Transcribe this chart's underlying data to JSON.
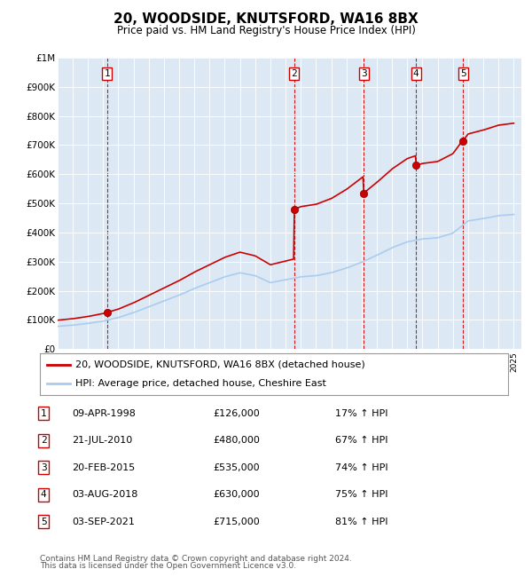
{
  "title": "20, WOODSIDE, KNUTSFORD, WA16 8BX",
  "subtitle": "Price paid vs. HM Land Registry's House Price Index (HPI)",
  "x_start_year": 1995,
  "x_end_year": 2025,
  "y_max": 1000000,
  "y_ticks": [
    0,
    100000,
    200000,
    300000,
    400000,
    500000,
    600000,
    700000,
    800000,
    900000,
    1000000
  ],
  "y_tick_labels": [
    "£0",
    "£100K",
    "£200K",
    "£300K",
    "£400K",
    "£500K",
    "£600K",
    "£700K",
    "£800K",
    "£900K",
    "£1M"
  ],
  "purchases": [
    {
      "date_year": 1998.27,
      "price": 126000,
      "label": "1",
      "date_str": "09-APR-1998",
      "hpi_pct": "17%"
    },
    {
      "date_year": 2010.55,
      "price": 480000,
      "label": "2",
      "date_str": "21-JUL-2010",
      "hpi_pct": "67%"
    },
    {
      "date_year": 2015.13,
      "price": 535000,
      "label": "3",
      "date_str": "20-FEB-2015",
      "hpi_pct": "74%"
    },
    {
      "date_year": 2018.58,
      "price": 630000,
      "label": "4",
      "date_str": "03-AUG-2018",
      "hpi_pct": "75%"
    },
    {
      "date_year": 2021.67,
      "price": 715000,
      "label": "5",
      "date_str": "03-SEP-2021",
      "hpi_pct": "81%"
    }
  ],
  "hpi_line_color": "#aaccee",
  "price_line_color": "#CC0000",
  "purchase_marker_color": "#CC0000",
  "purchase_vline_color": "#CC0000",
  "legend_red_label": "20, WOODSIDE, KNUTSFORD, WA16 8BX (detached house)",
  "legend_blue_label": "HPI: Average price, detached house, Cheshire East",
  "footer1": "Contains HM Land Registry data © Crown copyright and database right 2024.",
  "footer2": "This data is licensed under the Open Government Licence v3.0.",
  "plot_bg_color": "#dce9f5",
  "hpi_knots": [
    1995,
    1996,
    1997,
    1998,
    1999,
    2000,
    2001,
    2002,
    2003,
    2004,
    2005,
    2006,
    2007,
    2008,
    2009,
    2010,
    2011,
    2012,
    2013,
    2014,
    2015,
    2016,
    2017,
    2018,
    2019,
    2020,
    2021,
    2022,
    2023,
    2024,
    2025
  ],
  "hpi_vals": [
    78000,
    82000,
    88000,
    96000,
    108000,
    125000,
    145000,
    165000,
    185000,
    208000,
    228000,
    248000,
    262000,
    252000,
    228000,
    238000,
    248000,
    252000,
    262000,
    278000,
    298000,
    322000,
    348000,
    368000,
    378000,
    382000,
    398000,
    440000,
    448000,
    458000,
    462000
  ]
}
